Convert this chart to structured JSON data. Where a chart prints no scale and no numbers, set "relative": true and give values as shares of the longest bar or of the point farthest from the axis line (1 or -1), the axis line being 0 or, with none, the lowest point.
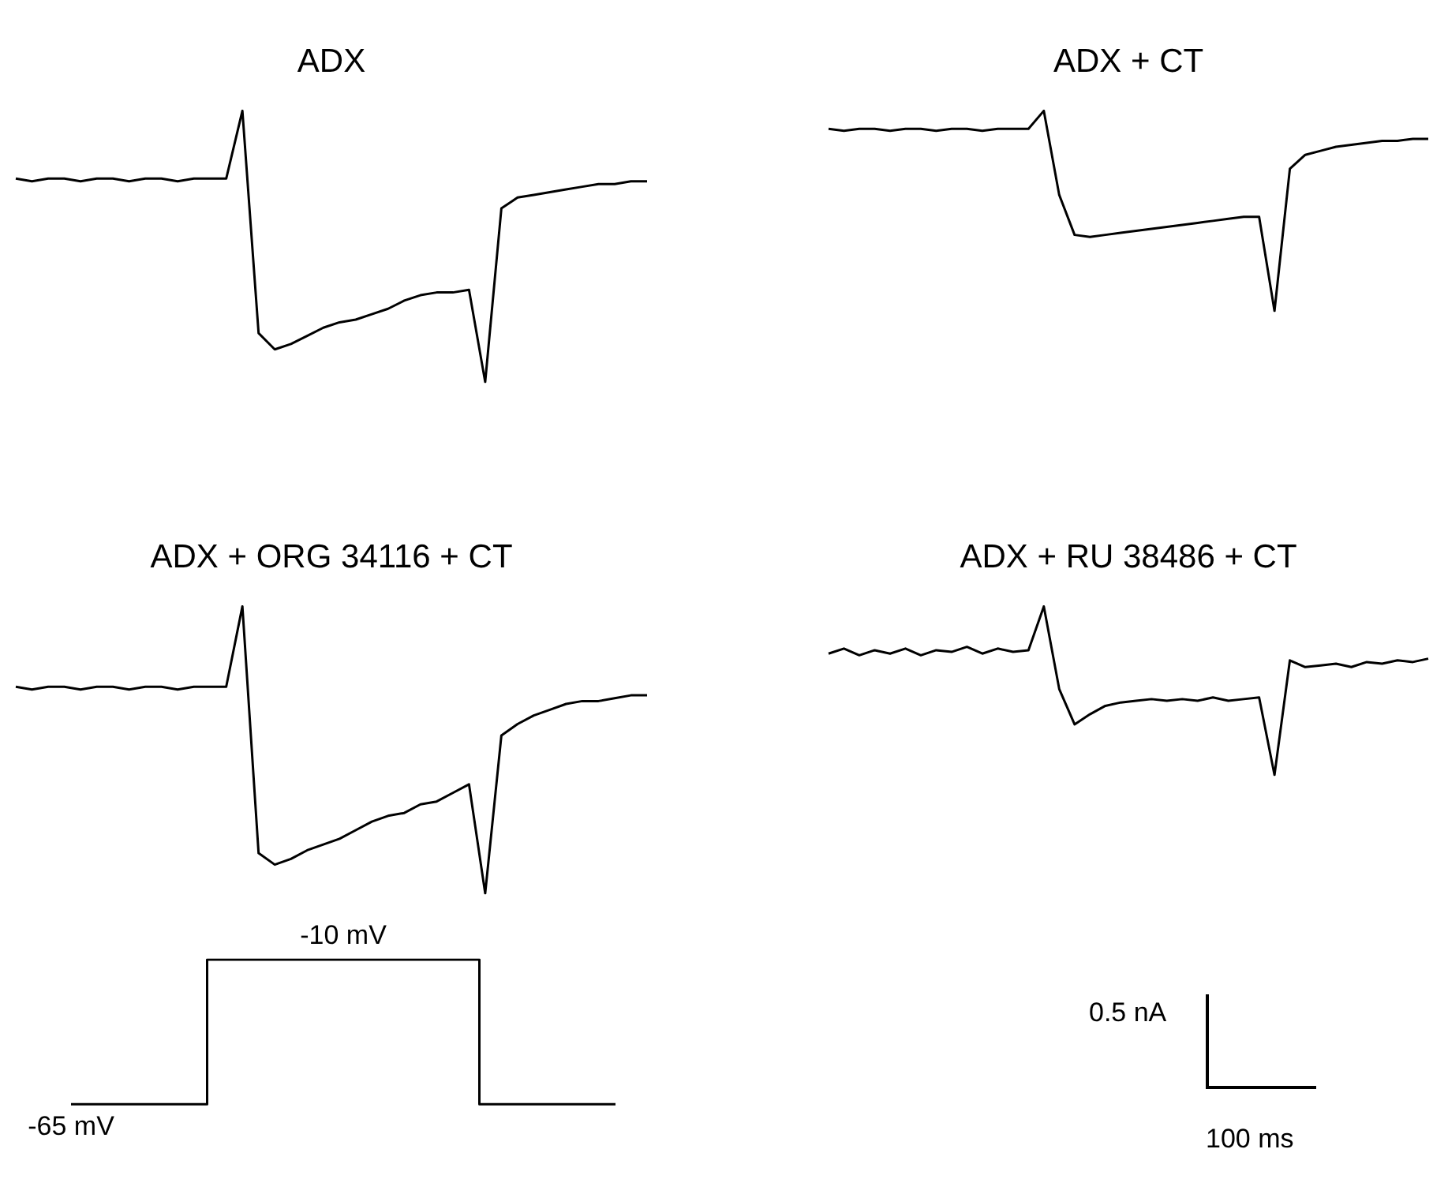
{
  "chart_data": [
    {
      "type": "line",
      "title": "ADX",
      "relative": true,
      "categories": [
        null,
        null,
        null,
        null,
        null,
        null,
        null,
        null,
        null,
        null,
        null,
        null,
        null,
        null,
        null,
        null,
        null,
        null,
        null,
        null,
        null,
        null,
        null,
        null,
        null,
        null,
        null,
        null,
        null,
        null,
        null,
        null,
        null,
        null,
        null,
        null,
        null,
        null,
        null,
        null
      ],
      "series": [
        {
          "color": "#000000",
          "values": [
            0.75,
            0.74,
            0.75,
            0.75,
            0.74,
            0.75,
            0.75,
            0.74,
            0.75,
            0.75,
            0.74,
            0.75,
            0.75,
            0.75,
            1.0,
            0.18,
            0.12,
            0.14,
            0.17,
            0.2,
            0.22,
            0.23,
            0.25,
            0.27,
            0.3,
            0.32,
            0.33,
            0.33,
            0.34,
            0,
            0.64,
            0.68,
            0.69,
            0.7,
            0.71,
            0.72,
            0.73,
            0.73,
            0.74,
            0.74
          ]
        }
      ],
      "legend": false
    },
    {
      "type": "line",
      "title": "ADX + CT",
      "relative": true,
      "categories": [
        null,
        null,
        null,
        null,
        null,
        null,
        null,
        null,
        null,
        null,
        null,
        null,
        null,
        null,
        null,
        null,
        null,
        null,
        null,
        null,
        null,
        null,
        null,
        null,
        null,
        null,
        null,
        null,
        null,
        null,
        null,
        null,
        null,
        null,
        null,
        null,
        null,
        null,
        null,
        null
      ],
      "series": [
        {
          "color": "#000000",
          "values": [
            0.91,
            0.9,
            0.91,
            0.91,
            0.9,
            0.91,
            0.91,
            0.9,
            0.91,
            0.91,
            0.9,
            0.91,
            0.91,
            0.91,
            1.0,
            0.58,
            0.38,
            0.37,
            0.38,
            0.39,
            0.4,
            0.41,
            0.42,
            0.43,
            0.44,
            0.45,
            0.46,
            0.47,
            0.47,
            0,
            0.71,
            0.78,
            0.8,
            0.82,
            0.83,
            0.84,
            0.85,
            0.85,
            0.86,
            0.86
          ]
        }
      ],
      "legend": false
    },
    {
      "type": "line",
      "title": "ADX + ORG 34116 + CT",
      "relative": true,
      "categories": [
        null,
        null,
        null,
        null,
        null,
        null,
        null,
        null,
        null,
        null,
        null,
        null,
        null,
        null,
        null,
        null,
        null,
        null,
        null,
        null,
        null,
        null,
        null,
        null,
        null,
        null,
        null,
        null,
        null,
        null,
        null,
        null,
        null,
        null,
        null,
        null,
        null,
        null,
        null,
        null
      ],
      "series": [
        {
          "color": "#000000",
          "values": [
            0.72,
            0.71,
            0.72,
            0.72,
            0.71,
            0.72,
            0.72,
            0.71,
            0.72,
            0.72,
            0.71,
            0.72,
            0.72,
            0.72,
            1.0,
            0.14,
            0.1,
            0.12,
            0.15,
            0.17,
            0.19,
            0.22,
            0.25,
            0.27,
            0.28,
            0.31,
            0.32,
            0.35,
            0.38,
            0,
            0.55,
            0.59,
            0.62,
            0.64,
            0.66,
            0.67,
            0.67,
            0.68,
            0.69,
            0.69
          ]
        }
      ],
      "legend": false
    },
    {
      "type": "line",
      "title": "ADX + RU 38486 + CT",
      "relative": true,
      "categories": [
        null,
        null,
        null,
        null,
        null,
        null,
        null,
        null,
        null,
        null,
        null,
        null,
        null,
        null,
        null,
        null,
        null,
        null,
        null,
        null,
        null,
        null,
        null,
        null,
        null,
        null,
        null,
        null,
        null,
        null,
        null,
        null,
        null,
        null,
        null,
        null,
        null,
        null,
        null,
        null
      ],
      "series": [
        {
          "color": "#000000",
          "values": [
            0.72,
            0.75,
            0.71,
            0.74,
            0.72,
            0.75,
            0.71,
            0.74,
            0.73,
            0.76,
            0.72,
            0.75,
            0.73,
            0.74,
            1.0,
            0.51,
            0.3,
            0.36,
            0.41,
            0.43,
            0.44,
            0.45,
            0.44,
            0.45,
            0.44,
            0.46,
            0.44,
            0.45,
            0.46,
            0,
            0.68,
            0.64,
            0.65,
            0.66,
            0.64,
            0.67,
            0.66,
            0.68,
            0.67,
            0.69
          ]
        }
      ],
      "legend": false
    },
    {
      "type": "step",
      "categories": [
        null,
        null,
        null,
        null,
        null,
        null,
        null,
        null,
        null,
        null,
        null
      ],
      "series": [
        {
          "color": "#000000",
          "values": [
            -65,
            -65,
            -65,
            -10,
            -10,
            -10,
            -10,
            -10,
            -65,
            -65,
            -65
          ],
          "value_labels": [
            "-65 mV",
            null,
            null,
            null,
            null,
            "-10 mV",
            null,
            null,
            null,
            null,
            null
          ]
        }
      ],
      "legend": false
    },
    {
      "type": "other",
      "annotations": [
        "0.5 nA",
        "100 ms"
      ]
    }
  ]
}
